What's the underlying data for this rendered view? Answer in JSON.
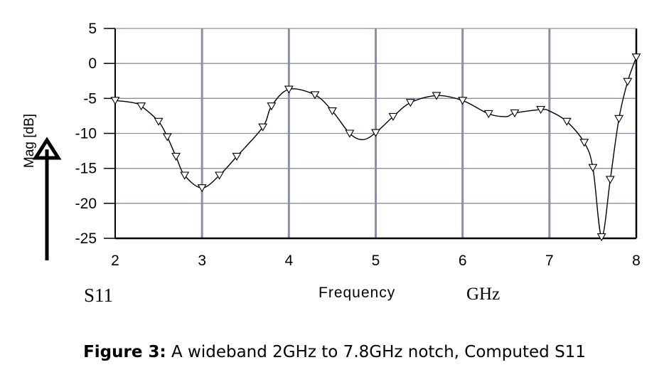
{
  "chart_data": {
    "type": "line",
    "xlabel": "Frequency",
    "xunit": "GHz",
    "ylabel": "Mag [dB]",
    "series_label": "S11",
    "xlim": [
      2,
      8
    ],
    "ylim": [
      -25,
      5
    ],
    "x_ticks": [
      "2",
      "3",
      "4",
      "5",
      "6",
      "7",
      "8"
    ],
    "y_ticks": [
      "5",
      "0",
      "-5",
      "-10",
      "-15",
      "-20",
      "-25"
    ],
    "grid": true,
    "colors": {
      "grid": "#8a8fa6",
      "curve": "#000000"
    },
    "series": [
      {
        "name": "S11",
        "marker": "triangle-down",
        "points": [
          [
            2.0,
            -5.3
          ],
          [
            2.2,
            -5.6
          ],
          [
            2.3,
            -6.1
          ],
          [
            2.5,
            -8.3
          ],
          [
            2.6,
            -10.5
          ],
          [
            2.7,
            -13.3
          ],
          [
            2.8,
            -16.0
          ],
          [
            3.0,
            -17.8
          ],
          [
            3.2,
            -16.0
          ],
          [
            3.4,
            -13.3
          ],
          [
            3.7,
            -9.1
          ],
          [
            3.8,
            -6.1
          ],
          [
            4.0,
            -3.7
          ],
          [
            4.3,
            -4.5
          ],
          [
            4.5,
            -6.8
          ],
          [
            4.7,
            -10.0
          ],
          [
            4.85,
            -10.9
          ],
          [
            5.0,
            -9.9
          ],
          [
            5.2,
            -7.6
          ],
          [
            5.4,
            -5.6
          ],
          [
            5.7,
            -4.6
          ],
          [
            6.0,
            -5.3
          ],
          [
            6.3,
            -7.2
          ],
          [
            6.5,
            -7.6
          ],
          [
            6.6,
            -7.1
          ],
          [
            6.9,
            -6.6
          ],
          [
            7.0,
            -6.8
          ],
          [
            7.2,
            -8.3
          ],
          [
            7.4,
            -11.3
          ],
          [
            7.5,
            -14.9
          ],
          [
            7.6,
            -24.8
          ],
          [
            7.7,
            -16.6
          ],
          [
            7.8,
            -7.9
          ],
          [
            7.9,
            -2.6
          ],
          [
            8.0,
            0.9
          ]
        ],
        "marker_points": [
          [
            2.0,
            -5.3
          ],
          [
            2.3,
            -6.1
          ],
          [
            2.5,
            -8.3
          ],
          [
            2.6,
            -10.5
          ],
          [
            2.7,
            -13.3
          ],
          [
            2.8,
            -16.0
          ],
          [
            3.0,
            -17.8
          ],
          [
            3.2,
            -16.0
          ],
          [
            3.4,
            -13.3
          ],
          [
            3.7,
            -9.1
          ],
          [
            3.8,
            -6.1
          ],
          [
            4.0,
            -3.7
          ],
          [
            4.3,
            -4.5
          ],
          [
            4.5,
            -6.8
          ],
          [
            4.7,
            -10.0
          ],
          [
            5.0,
            -9.9
          ],
          [
            5.2,
            -7.6
          ],
          [
            5.4,
            -5.6
          ],
          [
            5.7,
            -4.6
          ],
          [
            6.0,
            -5.3
          ],
          [
            6.3,
            -7.2
          ],
          [
            6.6,
            -7.1
          ],
          [
            6.9,
            -6.6
          ],
          [
            7.2,
            -8.3
          ],
          [
            7.4,
            -11.3
          ],
          [
            7.5,
            -14.9
          ],
          [
            7.6,
            -24.8
          ],
          [
            7.7,
            -16.6
          ],
          [
            7.8,
            -7.9
          ],
          [
            7.9,
            -2.6
          ],
          [
            8.0,
            0.9
          ]
        ]
      }
    ]
  },
  "caption": {
    "figure_label": "Figure 3:",
    "text": " A wideband 2GHz to 7.8GHz notch, Computed S11"
  }
}
